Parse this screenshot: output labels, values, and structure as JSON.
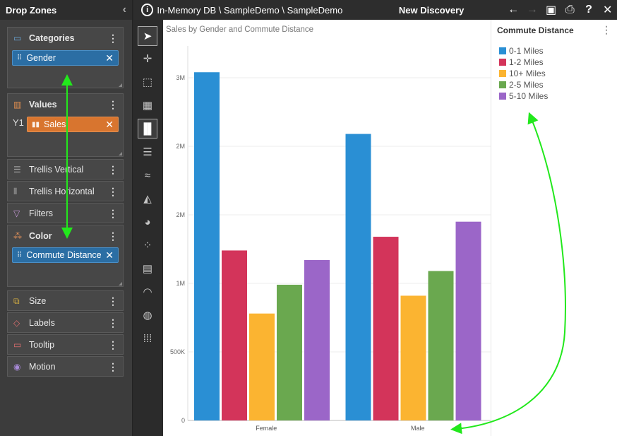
{
  "drop_zones": {
    "title": "Drop Zones",
    "collapse_icon": "chevron-left-icon",
    "categories": {
      "label": "Categories",
      "pill": "Gender"
    },
    "values": {
      "label": "Values",
      "axis_label": "Y1",
      "pill": "Sales"
    },
    "trellis_vertical": "Trellis Vertical",
    "trellis_horizontal": "Trellis Horizontal",
    "filters": "Filters",
    "color": {
      "label": "Color",
      "pill": "Commute Distance"
    },
    "size": "Size",
    "labels": "Labels",
    "tooltip": "Tooltip",
    "motion": "Motion",
    "pill_remove": "✕"
  },
  "topbar": {
    "breadcrumb": "In-Memory DB \\ SampleDemo \\ SampleDemo",
    "title": "New Discovery",
    "info_icon": "i"
  },
  "chart": {
    "title": "Sales by Gender and Commute Distance"
  },
  "legend": {
    "title": "Commute Distance"
  },
  "colors": {
    "0-1 Miles": "#2a8fd4",
    "1-2 Miles": "#d3345a",
    "10+ Miles": "#fbb431",
    "2-5 Miles": "#6aa84f",
    "5-10 Miles": "#9b66c8",
    "annotation": "#22e81c"
  },
  "chart_data": {
    "type": "bar",
    "title": "Sales by Gender and Commute Distance",
    "categories": [
      "Female",
      "Male"
    ],
    "series": [
      {
        "name": "0-1 Miles",
        "values": [
          2540000,
          2090000
        ]
      },
      {
        "name": "1-2 Miles",
        "values": [
          1240000,
          1340000
        ]
      },
      {
        "name": "10+ Miles",
        "values": [
          780000,
          910000
        ]
      },
      {
        "name": "2-5 Miles",
        "values": [
          990000,
          1090000
        ]
      },
      {
        "name": "5-10 Miles",
        "values": [
          1170000,
          1450000
        ]
      }
    ],
    "yticks": [
      {
        "v": 0,
        "label": "0"
      },
      {
        "v": 500000,
        "label": "500K"
      },
      {
        "v": 1000000,
        "label": "1M"
      },
      {
        "v": 1500000,
        "label": "2M"
      },
      {
        "v": 2000000,
        "label": "2M"
      },
      {
        "v": 2500000,
        "label": "3M"
      }
    ],
    "ylim": [
      0,
      2500000
    ],
    "grid": true,
    "legend_position": "right"
  }
}
